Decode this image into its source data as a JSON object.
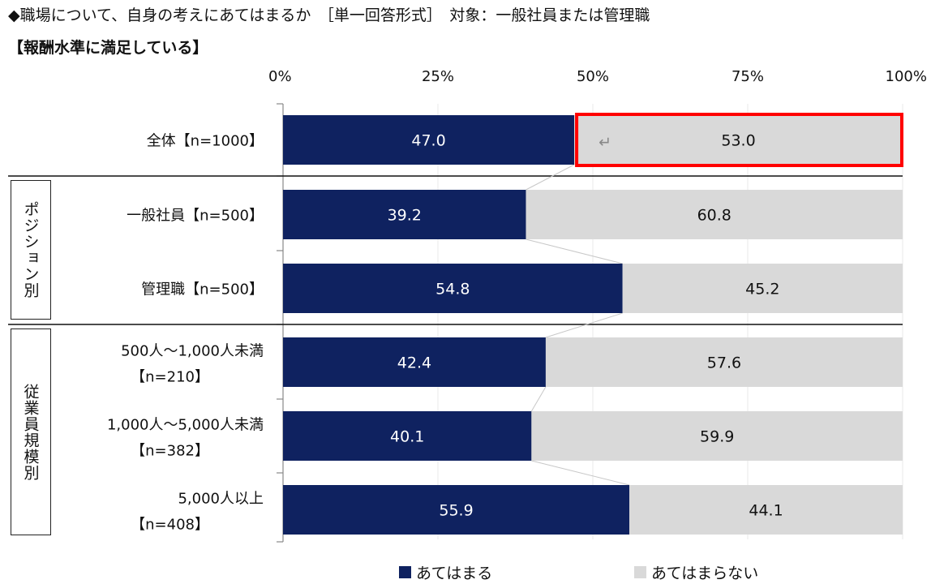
{
  "header": {
    "question": "◆職場について、自身の考えにあてはまるか　［単一回答形式］　対象：一般社員または管理職",
    "statement": "【報酬水準に満足している】"
  },
  "groups": [
    {
      "label": "ポジション別"
    },
    {
      "label": "従業員規模別"
    }
  ],
  "legend": [
    {
      "label": "あてはまる",
      "color": "#0f2260"
    },
    {
      "label": "あてはまらない",
      "color": "#d9d9d9"
    }
  ],
  "chart_data": {
    "type": "bar",
    "orientation": "horizontal",
    "stacked": true,
    "percent_stacked": true,
    "x_ticks": [
      "0%",
      "25%",
      "50%",
      "75%",
      "100%"
    ],
    "xlim": [
      0,
      100
    ],
    "rows": [
      {
        "line1": "全体【n=1000】",
        "line2": ""
      },
      {
        "line1": "一般社員【n=500】",
        "line2": ""
      },
      {
        "line1": "管理職【n=500】",
        "line2": ""
      },
      {
        "line1": "500人～1,000人未満",
        "line2": "【n=210】"
      },
      {
        "line1": "1,000人～5,000人未満",
        "line2": "【n=382】"
      },
      {
        "line1": "5,000人以上",
        "line2": "【n=408】"
      }
    ],
    "series": [
      {
        "name": "あてはまる",
        "color": "#0f2260",
        "values": [
          47.0,
          39.2,
          54.8,
          42.4,
          40.1,
          55.9
        ],
        "labels": [
          "47.0",
          "39.2",
          "54.8",
          "42.4",
          "40.1",
          "55.9"
        ]
      },
      {
        "name": "あてはまらない",
        "color": "#d9d9d9",
        "values": [
          53.0,
          60.8,
          45.2,
          57.6,
          59.9,
          44.1
        ],
        "labels": [
          "53.0",
          "60.8",
          "45.2",
          "57.6",
          "59.9",
          "44.1"
        ]
      }
    ],
    "highlight": {
      "row": 0,
      "series": 1,
      "color": "#ff0000"
    },
    "legend_position": "bottom",
    "grid": true
  }
}
